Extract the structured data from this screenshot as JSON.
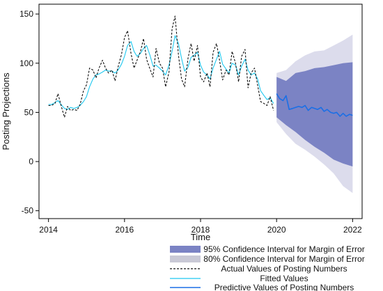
{
  "chart_data": {
    "type": "line",
    "title": "",
    "xlabel": "Time",
    "ylabel": "Posting Projections",
    "xlim": [
      2013.75,
      2022.25
    ],
    "ylim": [
      -58,
      160
    ],
    "x_ticks": [
      2014,
      2016,
      2018,
      2020,
      2022
    ],
    "x_tick_labels": [
      "2014",
      "2016",
      "2018",
      "2020",
      "2022"
    ],
    "y_ticks": [
      -50,
      0,
      50,
      100,
      150
    ],
    "y_tick_labels": [
      "-50",
      "0",
      "50",
      "100",
      "150"
    ],
    "grid": false,
    "legend_position": "below",
    "colors": {
      "ci95": "#7b83c4",
      "ci80": "#dcdcec",
      "actual": "#111111",
      "fitted": "#1ec8f0",
      "predictive": "#1a6fe6",
      "axis": "#000000"
    },
    "legend": [
      {
        "key": "ci95",
        "label": "95% Confidence Interval for Margin of Error",
        "style": "fill"
      },
      {
        "key": "ci80",
        "label": "80% Confidence Interval for Margin of Error",
        "style": "fill"
      },
      {
        "key": "actual",
        "label": "Actual Values of Posting Numbers",
        "style": "dashed"
      },
      {
        "key": "fitted",
        "label": "Fitted Values",
        "style": "line"
      },
      {
        "key": "predictive",
        "label": "Predictive Values of Posting Numbers",
        "style": "line"
      }
    ],
    "series": [
      {
        "name": "Actual Values of Posting Numbers",
        "key": "actual",
        "x": [
          2014.0,
          2014.08,
          2014.17,
          2014.25,
          2014.33,
          2014.42,
          2014.5,
          2014.58,
          2014.67,
          2014.75,
          2014.83,
          2014.92,
          2015.0,
          2015.08,
          2015.17,
          2015.25,
          2015.33,
          2015.42,
          2015.5,
          2015.58,
          2015.67,
          2015.75,
          2015.83,
          2015.92,
          2016.0,
          2016.08,
          2016.17,
          2016.25,
          2016.33,
          2016.42,
          2016.5,
          2016.58,
          2016.67,
          2016.75,
          2016.83,
          2016.92,
          2017.0,
          2017.08,
          2017.17,
          2017.25,
          2017.33,
          2017.42,
          2017.5,
          2017.58,
          2017.67,
          2017.75,
          2017.83,
          2017.92,
          2018.0,
          2018.08,
          2018.17,
          2018.25,
          2018.33,
          2018.42,
          2018.5,
          2018.58,
          2018.67,
          2018.75,
          2018.83,
          2018.92,
          2019.0,
          2019.08,
          2019.17,
          2019.25,
          2019.33,
          2019.42,
          2019.5,
          2019.58,
          2019.67,
          2019.75,
          2019.83,
          2019.92
        ],
        "values": [
          57,
          57,
          59,
          69,
          57,
          45,
          56,
          52,
          53,
          52,
          58,
          72,
          78,
          95,
          93,
          85,
          95,
          103,
          95,
          90,
          93,
          82,
          96,
          109,
          126,
          133,
          110,
          95,
          103,
          112,
          125,
          104,
          94,
          86,
          115,
          100,
          95,
          76,
          91,
          135,
          148,
          108,
          84,
          76,
          105,
          120,
          102,
          118,
          86,
          81,
          90,
          76,
          111,
          120,
          103,
          83,
          93,
          88,
          112,
          100,
          81,
          107,
          114,
          75,
          90,
          95,
          78,
          61,
          59,
          57,
          66,
          52
        ]
      },
      {
        "name": "Fitted Values",
        "key": "fitted",
        "x": [
          2014.0,
          2014.08,
          2014.17,
          2014.25,
          2014.33,
          2014.42,
          2014.5,
          2014.58,
          2014.67,
          2014.75,
          2014.83,
          2014.92,
          2015.0,
          2015.08,
          2015.17,
          2015.25,
          2015.33,
          2015.42,
          2015.5,
          2015.58,
          2015.67,
          2015.75,
          2015.83,
          2015.92,
          2016.0,
          2016.08,
          2016.17,
          2016.25,
          2016.33,
          2016.42,
          2016.5,
          2016.58,
          2016.67,
          2016.75,
          2016.83,
          2016.92,
          2017.0,
          2017.08,
          2017.17,
          2017.25,
          2017.33,
          2017.42,
          2017.5,
          2017.58,
          2017.67,
          2017.75,
          2017.83,
          2017.92,
          2018.0,
          2018.08,
          2018.17,
          2018.25,
          2018.33,
          2018.42,
          2018.5,
          2018.58,
          2018.67,
          2018.75,
          2018.83,
          2018.92,
          2019.0,
          2019.08,
          2019.17,
          2019.25,
          2019.33,
          2019.42,
          2019.5,
          2019.58,
          2019.67,
          2019.75,
          2019.83,
          2019.92
        ],
        "values": [
          58,
          58,
          60,
          62,
          58,
          54,
          53,
          55,
          54,
          55,
          57,
          61,
          66,
          76,
          84,
          88,
          89,
          91,
          93,
          92,
          92,
          90,
          93,
          99,
          107,
          118,
          122,
          112,
          107,
          110,
          115,
          118,
          108,
          97,
          98,
          95,
          92,
          88,
          98,
          112,
          128,
          120,
          105,
          92,
          96,
          106,
          108,
          111,
          98,
          91,
          88,
          84,
          95,
          104,
          112,
          99,
          94,
          90,
          100,
          98,
          88,
          97,
          104,
          93,
          88,
          90,
          84,
          72,
          67,
          63,
          65,
          59
        ]
      },
      {
        "name": "Predictive Values of Posting Numbers",
        "key": "predictive",
        "x": [
          2020.0,
          2020.08,
          2020.17,
          2020.25,
          2020.33,
          2020.42,
          2020.5,
          2020.58,
          2020.67,
          2020.75,
          2020.83,
          2020.92,
          2021.0,
          2021.08,
          2021.17,
          2021.25,
          2021.33,
          2021.42,
          2021.5,
          2021.58,
          2021.67,
          2021.75,
          2021.83,
          2021.92,
          2022.0
        ],
        "values": [
          69,
          64,
          62,
          67,
          53,
          54,
          55,
          56,
          55,
          57,
          52,
          55,
          54,
          53,
          55,
          51,
          53,
          50,
          49,
          50,
          46,
          49,
          46,
          48,
          47
        ]
      }
    ],
    "bands": [
      {
        "name": "80% Confidence Interval for Margin of Error",
        "key": "ci80",
        "x": [
          2020.0,
          2020.25,
          2020.5,
          2020.75,
          2021.0,
          2021.25,
          2021.5,
          2021.75,
          2022.0
        ],
        "upper": [
          90,
          93,
          102,
          108,
          112,
          113,
          118,
          123,
          129
        ],
        "lower": [
          40,
          28,
          18,
          12,
          5,
          -3,
          -12,
          -25,
          -32
        ]
      },
      {
        "name": "95% Confidence Interval for Margin of Error",
        "key": "ci95",
        "x": [
          2020.0,
          2020.25,
          2020.5,
          2020.75,
          2021.0,
          2021.25,
          2021.5,
          2021.75,
          2022.0
        ],
        "upper": [
          86,
          82,
          90,
          92,
          95,
          96,
          98,
          100,
          101
        ],
        "lower": [
          45,
          37,
          30,
          22,
          15,
          9,
          2,
          -2,
          -5
        ]
      }
    ]
  }
}
